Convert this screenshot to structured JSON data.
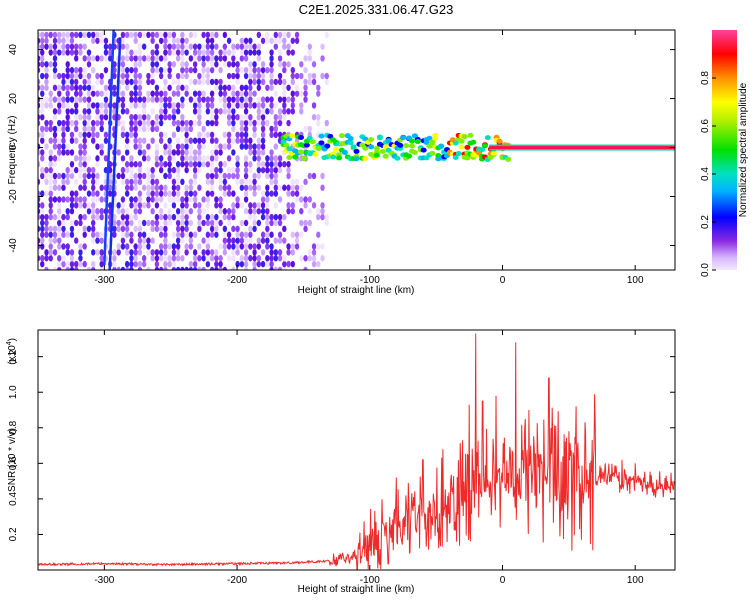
{
  "title": "C2E1.2025.331.06.47.G23",
  "colors": {
    "snr_line": "#ee2a2a",
    "background": "#ffffff"
  },
  "chart_data": [
    {
      "type": "heatmap",
      "name": "spectrogram",
      "xlabel": "Height of straight line (km)",
      "ylabel": "Frequency (Hz)",
      "xlim": [
        -350,
        130
      ],
      "ylim": [
        -50,
        48
      ],
      "xticks": [
        -300,
        -200,
        -100,
        0,
        100
      ],
      "yticks": [
        -40,
        -20,
        0,
        20,
        40
      ],
      "description_regions": [
        {
          "kind": "noise",
          "x_range": [
            -350,
            -130
          ],
          "amplitude": "low (violet/blue)"
        },
        {
          "kind": "signal_band",
          "x_range": [
            -165,
            5
          ],
          "center_freq": 0,
          "amplitude": "0.3-0.8"
        },
        {
          "kind": "carrier_line",
          "x_range": [
            -10,
            130
          ],
          "center_freq": 0,
          "amplitude": "0.9"
        }
      ],
      "colorbar": {
        "label": "Normalized spectral amplitude",
        "range": [
          0.0,
          1.0
        ],
        "ticks": [
          0.0,
          0.2,
          0.4,
          0.6,
          0.8
        ]
      }
    },
    {
      "type": "line",
      "name": "snr",
      "xlabel": "Height of straight line (km)",
      "ylabel": "SNR (10 * v/v)",
      "y_scale_label": "(x10",
      "y_scale_exp": "4",
      "y_scale_close": ")",
      "xlim": [
        -350,
        130
      ],
      "ylim": [
        0,
        1.35
      ],
      "xticks": [
        -300,
        -200,
        -100,
        0,
        100
      ],
      "yticks": [
        0.2,
        0.4,
        0.6,
        0.8,
        1.0,
        1.2
      ],
      "series": [
        {
          "name": "SNR",
          "anchors": [
            [
              -350,
              0.03
            ],
            [
              -300,
              0.035
            ],
            [
              -250,
              0.03
            ],
            [
              -200,
              0.035
            ],
            [
              -160,
              0.04
            ],
            [
              -130,
              0.05
            ],
            [
              -110,
              0.08
            ],
            [
              -100,
              0.13
            ],
            [
              -90,
              0.18
            ],
            [
              -80,
              0.23
            ],
            [
              -70,
              0.26
            ],
            [
              -60,
              0.3
            ],
            [
              -50,
              0.33
            ],
            [
              -40,
              0.36
            ],
            [
              -30,
              0.4
            ],
            [
              -20,
              0.45
            ],
            [
              -10,
              0.5
            ],
            [
              0,
              0.55
            ],
            [
              10,
              0.52
            ],
            [
              20,
              0.5
            ],
            [
              30,
              0.5
            ],
            [
              40,
              0.48
            ],
            [
              50,
              0.48
            ],
            [
              60,
              0.5
            ],
            [
              70,
              0.5
            ],
            [
              80,
              0.52
            ],
            [
              90,
              0.5
            ],
            [
              100,
              0.5
            ],
            [
              110,
              0.48
            ],
            [
              120,
              0.47
            ],
            [
              130,
              0.47
            ]
          ],
          "peaks": [
            [
              -80,
              0.52
            ],
            [
              -60,
              0.62
            ],
            [
              -45,
              0.68
            ],
            [
              -30,
              0.73
            ],
            [
              -25,
              0.93
            ],
            [
              -20,
              1.33
            ],
            [
              -15,
              0.95
            ],
            [
              -5,
              0.98
            ],
            [
              10,
              1.28
            ],
            [
              20,
              0.9
            ],
            [
              35,
              1.08
            ],
            [
              50,
              0.78
            ],
            [
              70,
              0.83
            ],
            [
              90,
              0.62
            ],
            [
              100,
              0.6
            ]
          ]
        }
      ]
    }
  ]
}
